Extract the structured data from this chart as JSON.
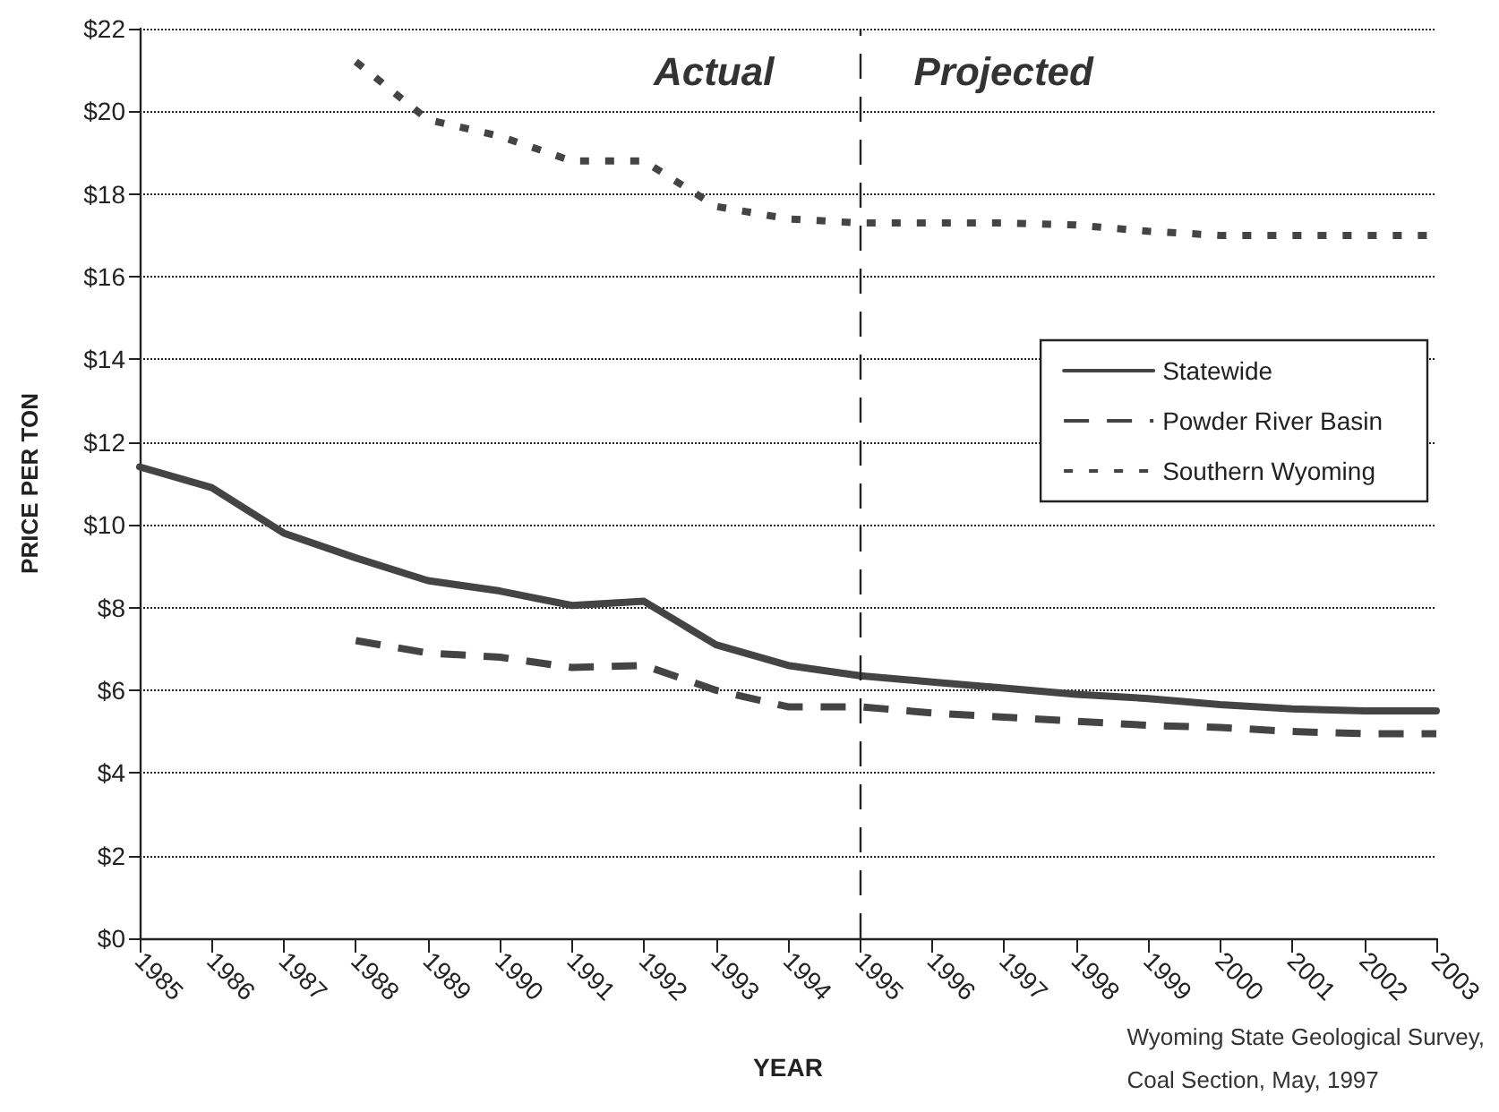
{
  "chart_data": {
    "type": "line",
    "xlabel": "YEAR",
    "ylabel": "PRICE PER TON",
    "x": [
      1985,
      1986,
      1987,
      1988,
      1989,
      1990,
      1991,
      1992,
      1993,
      1994,
      1995,
      1996,
      1997,
      1998,
      1999,
      2000,
      2001,
      2002,
      2003
    ],
    "series": [
      {
        "name": "Statewide",
        "color": "#444444",
        "line_style": "solid",
        "values": [
          11.4,
          10.9,
          9.8,
          9.2,
          8.65,
          8.4,
          8.05,
          8.15,
          7.1,
          6.6,
          6.35,
          6.2,
          6.05,
          5.9,
          5.8,
          5.65,
          5.55,
          5.5,
          5.5
        ]
      },
      {
        "name": "Powder River Basin",
        "color": "#444444",
        "line_style": "dashed",
        "values": [
          null,
          null,
          null,
          7.2,
          6.9,
          6.8,
          6.55,
          6.6,
          6.0,
          5.6,
          5.6,
          5.45,
          5.35,
          5.25,
          5.15,
          5.1,
          5.0,
          4.95,
          4.95
        ]
      },
      {
        "name": "Southern Wyoming",
        "color": "#444444",
        "line_style": "dotted",
        "values": [
          null,
          null,
          null,
          21.2,
          19.8,
          19.4,
          18.8,
          18.8,
          17.7,
          17.4,
          17.3,
          17.3,
          17.3,
          17.25,
          17.1,
          17.0,
          17.0,
          17.0,
          17.0
        ]
      }
    ],
    "xlim": [
      1985,
      2003
    ],
    "xticks": [
      1985,
      1986,
      1987,
      1988,
      1989,
      1990,
      1991,
      1992,
      1993,
      1994,
      1995,
      1996,
      1997,
      1998,
      1999,
      2000,
      2001,
      2002,
      2003
    ],
    "ylim": [
      0,
      22
    ],
    "yticks": [
      {
        "value": 0,
        "label": "$0"
      },
      {
        "value": 2,
        "label": "$2"
      },
      {
        "value": 4,
        "label": "$4"
      },
      {
        "value": 6,
        "label": "$6"
      },
      {
        "value": 8,
        "label": "$8"
      },
      {
        "value": 10,
        "label": "$10"
      },
      {
        "value": 12,
        "label": "$12"
      },
      {
        "value": 14,
        "label": "$14"
      },
      {
        "value": 16,
        "label": "$16"
      },
      {
        "value": 18,
        "label": "$18"
      },
      {
        "value": 20,
        "label": "$20"
      },
      {
        "value": 22,
        "label": "$22"
      }
    ],
    "grid": "y",
    "legend": "right",
    "marker": "none",
    "ref_lines": [
      {
        "axis": "x",
        "value": 1995,
        "color": "#222222",
        "line_style": "dashed"
      }
    ],
    "annotations": [
      "Actual",
      "Projected",
      "Wyoming State Geological Survey,\nCoal Section, May, 1997"
    ]
  }
}
